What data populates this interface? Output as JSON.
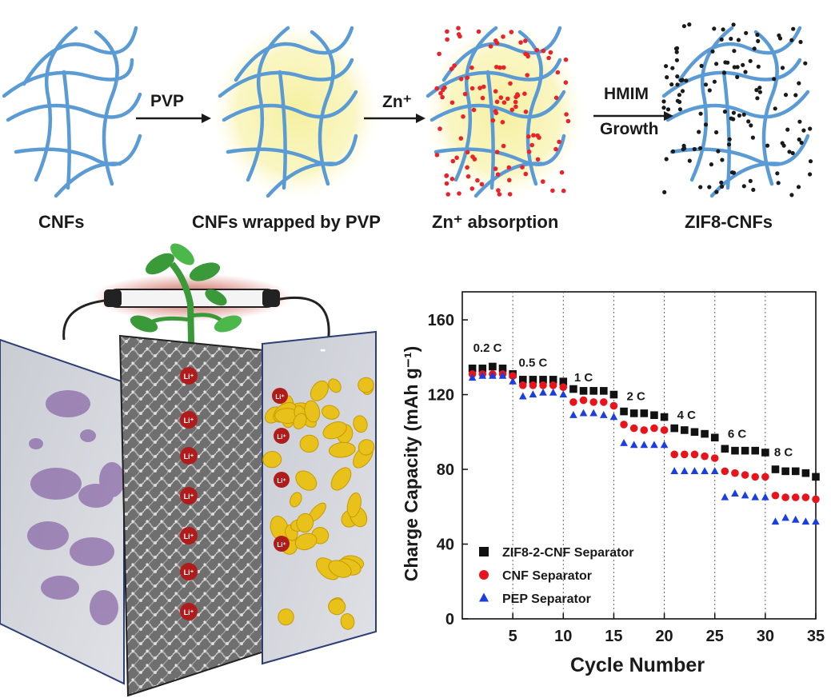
{
  "top_panel": {
    "stages": [
      {
        "label": "CNFs"
      },
      {
        "label": "CNFs wrapped by PVP"
      },
      {
        "label": "Zn⁺ absorption"
      },
      {
        "label": "ZIF8-CNFs"
      }
    ],
    "arrows": [
      {
        "text": "PVP"
      },
      {
        "text": "Zn⁺"
      },
      {
        "text": "HMIM",
        "text2": "Growth"
      }
    ],
    "colors": {
      "fiber": "#5b9bd5",
      "pvp_glow": "#f5ef9a",
      "zn": "#e8232a",
      "zif8": "#1a1a1a"
    }
  },
  "battery_illustration": {
    "plus_sign": "+",
    "minus_sign": "-",
    "ion_label": "Li⁺",
    "colors": {
      "cathode": "#8b6aa8",
      "anode": "#e8c11a",
      "ion": "#b01c1c",
      "leaf": "#3a9a3a",
      "glow": "#c0392b"
    }
  },
  "chart_data": {
    "type": "scatter",
    "xlabel": "Cycle Number",
    "ylabel": "Charge Capacity (mAh g⁻¹)",
    "xlim": [
      0,
      35
    ],
    "ylim": [
      0,
      175
    ],
    "xticks": [
      5,
      10,
      15,
      20,
      25,
      30,
      35
    ],
    "yticks": [
      0,
      40,
      80,
      120,
      160
    ],
    "rate_boundaries": [
      5,
      10,
      15,
      20,
      25,
      30
    ],
    "rate_labels": [
      {
        "text": "0.2 C",
        "x": 2.5,
        "y": 143
      },
      {
        "text": "0.5 C",
        "x": 7.0,
        "y": 135
      },
      {
        "text": "1 C",
        "x": 12.0,
        "y": 127
      },
      {
        "text": "2 C",
        "x": 17.2,
        "y": 117
      },
      {
        "text": "4 C",
        "x": 22.2,
        "y": 107
      },
      {
        "text": "6 C",
        "x": 27.2,
        "y": 97
      },
      {
        "text": "8 C",
        "x": 31.8,
        "y": 87
      }
    ],
    "legend_position": "bottom-left",
    "series": [
      {
        "name": "ZIF8-2-CNF Separator",
        "marker": "square",
        "color": "#111111",
        "x": [
          1,
          2,
          3,
          4,
          5,
          6,
          7,
          8,
          9,
          10,
          11,
          12,
          13,
          14,
          15,
          16,
          17,
          18,
          19,
          20,
          21,
          22,
          23,
          24,
          25,
          26,
          27,
          28,
          29,
          30,
          31,
          32,
          33,
          34,
          35
        ],
        "y": [
          134,
          134,
          135,
          134,
          131,
          128,
          128,
          128,
          128,
          127,
          123,
          122,
          122,
          122,
          120,
          111,
          110,
          110,
          109,
          108,
          102,
          101,
          100,
          99,
          97,
          91,
          90,
          90,
          90,
          89,
          80,
          79,
          79,
          78,
          76
        ]
      },
      {
        "name": "CNF Separator",
        "marker": "circle",
        "color": "#e8141c",
        "x": [
          1,
          2,
          3,
          4,
          5,
          6,
          7,
          8,
          9,
          10,
          11,
          12,
          13,
          14,
          15,
          16,
          17,
          18,
          19,
          20,
          21,
          22,
          23,
          24,
          25,
          26,
          27,
          28,
          29,
          30,
          31,
          32,
          33,
          34,
          35
        ],
        "y": [
          131,
          131,
          131,
          131,
          130,
          125,
          125,
          125,
          125,
          124,
          116,
          117,
          116,
          116,
          114,
          104,
          102,
          101,
          102,
          101,
          88,
          88,
          88,
          87,
          86,
          79,
          78,
          77,
          76,
          76,
          66,
          65,
          65,
          65,
          64
        ]
      },
      {
        "name": "PEP Separator",
        "marker": "triangle",
        "color": "#1a3ee0",
        "x": [
          1,
          2,
          3,
          4,
          5,
          6,
          7,
          8,
          9,
          10,
          11,
          12,
          13,
          14,
          15,
          16,
          17,
          18,
          19,
          20,
          21,
          22,
          23,
          24,
          25,
          26,
          27,
          28,
          29,
          30,
          31,
          32,
          33,
          34,
          35
        ],
        "y": [
          129,
          130,
          130,
          130,
          127,
          119,
          120,
          121,
          121,
          120,
          109,
          110,
          110,
          109,
          108,
          94,
          93,
          93,
          93,
          93,
          79,
          79,
          79,
          79,
          79,
          65,
          67,
          66,
          65,
          65,
          52,
          54,
          53,
          52,
          52
        ]
      }
    ]
  }
}
